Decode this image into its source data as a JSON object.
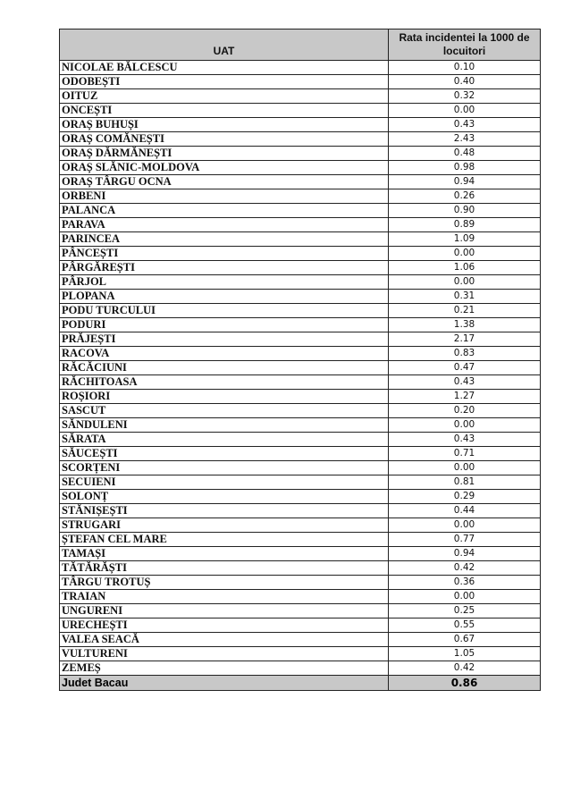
{
  "header": {
    "uat": "UAT",
    "rate": "Rata incidentei la 1000 de locuitori"
  },
  "rows": [
    {
      "name": "NICOLAE BĂLCESCU",
      "value": "0.10"
    },
    {
      "name": "ODOBEȘTI",
      "value": "0.40"
    },
    {
      "name": "OITUZ",
      "value": "0.32"
    },
    {
      "name": "ONCEȘTI",
      "value": "0.00"
    },
    {
      "name": "ORAȘ BUHUȘI",
      "value": "0.43"
    },
    {
      "name": "ORAȘ COMĂNEȘTI",
      "value": "2.43"
    },
    {
      "name": "ORAȘ DĂRMĂNEȘTI",
      "value": "0.48"
    },
    {
      "name": "ORAȘ SLĂNIC-MOLDOVA",
      "value": "0.98"
    },
    {
      "name": "ORAȘ TÂRGU OCNA",
      "value": "0.94"
    },
    {
      "name": "ORBENI",
      "value": "0.26"
    },
    {
      "name": "PALANCA",
      "value": "0.90"
    },
    {
      "name": "PARAVA",
      "value": "0.89"
    },
    {
      "name": "PARINCEA",
      "value": "1.09"
    },
    {
      "name": "PÂNCEȘTI",
      "value": "0.00"
    },
    {
      "name": "PÂRGĂREȘTI",
      "value": "1.06"
    },
    {
      "name": "PÂRJOL",
      "value": "0.00"
    },
    {
      "name": "PLOPANA",
      "value": "0.31"
    },
    {
      "name": "PODU TURCULUI",
      "value": "0.21"
    },
    {
      "name": "PODURI",
      "value": "1.38"
    },
    {
      "name": "PRĂJEȘTI",
      "value": "2.17"
    },
    {
      "name": "RACOVA",
      "value": "0.83"
    },
    {
      "name": "RĂCĂCIUNI",
      "value": "0.47"
    },
    {
      "name": "RĂCHITOASA",
      "value": "0.43"
    },
    {
      "name": "ROȘIORI",
      "value": "1.27"
    },
    {
      "name": "SASCUT",
      "value": "0.20"
    },
    {
      "name": "SĂNDULENI",
      "value": "0.00"
    },
    {
      "name": "SĂRATA",
      "value": "0.43"
    },
    {
      "name": "SĂUCEȘTI",
      "value": "0.71"
    },
    {
      "name": "SCORȚENI",
      "value": "0.00"
    },
    {
      "name": "SECUIENI",
      "value": "0.81"
    },
    {
      "name": "SOLONȚ",
      "value": "0.29"
    },
    {
      "name": "STĂNIȘEȘTI",
      "value": "0.44"
    },
    {
      "name": "STRUGARI",
      "value": "0.00"
    },
    {
      "name": "ȘTEFAN CEL MARE",
      "value": "0.77"
    },
    {
      "name": "TAMAȘI",
      "value": "0.94"
    },
    {
      "name": "TĂTĂRĂȘTI",
      "value": "0.42"
    },
    {
      "name": "TÂRGU TROTUȘ",
      "value": "0.36"
    },
    {
      "name": "TRAIAN",
      "value": "0.00"
    },
    {
      "name": "UNGURENI",
      "value": "0.25"
    },
    {
      "name": "URECHEȘTI",
      "value": "0.55"
    },
    {
      "name": "VALEA SEACĂ",
      "value": "0.67"
    },
    {
      "name": "VULTURENI",
      "value": "1.05"
    },
    {
      "name": "ZEMEȘ",
      "value": "0.42"
    }
  ],
  "total": {
    "name": "Judet Bacau",
    "value": "0.86"
  }
}
